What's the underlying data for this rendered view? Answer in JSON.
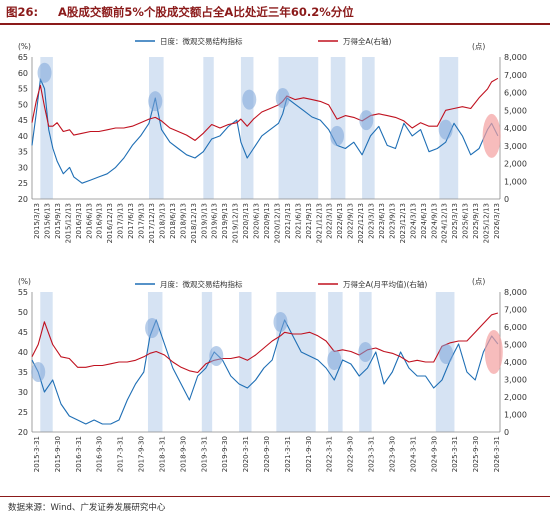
{
  "figure": {
    "number": "图26:",
    "title": "A股成交额前5%个股成交额占全A比处近三年60.2%分位",
    "source": "数据来源：Wind、广发证券发展研究中心"
  },
  "colors": {
    "left_series": "#1f6fb5",
    "right_series": "#c0111f",
    "shade": "#c8d9ef",
    "highlight_blue": "#7ea6d8",
    "highlight_red": "#f4a0a0"
  },
  "chart_data": [
    {
      "type": "line",
      "id": "daily",
      "left_unit": "(%)",
      "right_unit": "(点)",
      "ylim_left": [
        20,
        65
      ],
      "yticks_left": [
        20,
        25,
        30,
        35,
        40,
        45,
        50,
        55,
        60,
        65
      ],
      "ylim_right": [
        0,
        8000
      ],
      "yticks_right": [
        "0",
        "1,000",
        "2,000",
        "3,000",
        "4,000",
        "5,000",
        "6,000",
        "7,000",
        "8,000"
      ],
      "x_labels": [
        "2015/3/13",
        "2015/6/13",
        "2015/9/13",
        "2015/12/13",
        "2016/3/13",
        "2016/6/13",
        "2016/9/13",
        "2016/12/13",
        "2017/3/13",
        "2017/6/13",
        "2017/9/13",
        "2017/12/13",
        "2018/3/13",
        "2018/6/13",
        "2018/9/13",
        "2018/12/13",
        "2019/3/13",
        "2019/6/13",
        "2019/9/13",
        "2019/12/13",
        "2020/3/13",
        "2020/6/13",
        "2020/9/13",
        "2020/12/13",
        "2021/3/13",
        "2021/6/13",
        "2021/9/13",
        "2021/12/13",
        "2022/3/13",
        "2022/6/13",
        "2022/9/13",
        "2022/12/13",
        "2023/3/13",
        "2023/6/13",
        "2023/9/13",
        "2023/12/13",
        "2024/3/13",
        "2024/6/13",
        "2024/9/13",
        "2024/12/13",
        "2025/3/13",
        "2025/6/13",
        "2025/9/13",
        "2025/12/13",
        "2026/3/13"
      ],
      "x_range": [
        2015.0,
        2026.2
      ],
      "series": [
        {
          "name": "日度：微观交易结构指标",
          "axis": "left",
          "x": [
            2015.0,
            2015.1,
            2015.2,
            2015.3,
            2015.4,
            2015.5,
            2015.6,
            2015.75,
            2015.9,
            2016.0,
            2016.2,
            2016.4,
            2016.6,
            2016.8,
            2017.0,
            2017.2,
            2017.4,
            2017.6,
            2017.8,
            2017.95,
            2018.1,
            2018.3,
            2018.5,
            2018.7,
            2018.9,
            2019.1,
            2019.3,
            2019.5,
            2019.7,
            2019.9,
            2020.0,
            2020.15,
            2020.3,
            2020.5,
            2020.7,
            2020.9,
            2021.0,
            2021.1,
            2021.3,
            2021.5,
            2021.7,
            2021.9,
            2022.1,
            2022.3,
            2022.5,
            2022.7,
            2022.9,
            2023.1,
            2023.3,
            2023.5,
            2023.7,
            2023.9,
            2024.1,
            2024.3,
            2024.5,
            2024.7,
            2024.9,
            2025.1,
            2025.3,
            2025.5,
            2025.7,
            2025.9,
            2026.0,
            2026.15
          ],
          "y": [
            37,
            47,
            58,
            55,
            42,
            36,
            32,
            28,
            30,
            27,
            25,
            26,
            27,
            28,
            30,
            33,
            37,
            40,
            44,
            52,
            42,
            38,
            36,
            34,
            33,
            35,
            39,
            40,
            43,
            45,
            38,
            33,
            36,
            40,
            42,
            44,
            47,
            52,
            50,
            48,
            46,
            45,
            42,
            37,
            36,
            38,
            34,
            40,
            43,
            37,
            36,
            44,
            40,
            42,
            35,
            36,
            38,
            44,
            40,
            34,
            36,
            42,
            44,
            40
          ]
        },
        {
          "name": "万得全A(右轴)",
          "axis": "right",
          "x": [
            2015.0,
            2015.1,
            2015.2,
            2015.3,
            2015.4,
            2015.5,
            2015.6,
            2015.75,
            2015.9,
            2016.0,
            2016.2,
            2016.4,
            2016.6,
            2016.8,
            2017.0,
            2017.2,
            2017.4,
            2017.6,
            2017.8,
            2017.95,
            2018.1,
            2018.3,
            2018.5,
            2018.7,
            2018.9,
            2019.1,
            2019.3,
            2019.5,
            2019.7,
            2019.9,
            2020.0,
            2020.15,
            2020.3,
            2020.5,
            2020.7,
            2020.9,
            2021.0,
            2021.1,
            2021.3,
            2021.5,
            2021.7,
            2021.9,
            2022.1,
            2022.3,
            2022.5,
            2022.7,
            2022.9,
            2023.1,
            2023.3,
            2023.5,
            2023.7,
            2023.9,
            2024.1,
            2024.3,
            2024.5,
            2024.7,
            2024.9,
            2025.1,
            2025.3,
            2025.5,
            2025.7,
            2025.9,
            2026.0,
            2026.15
          ],
          "y": [
            4300,
            5500,
            6400,
            5200,
            4100,
            4100,
            4300,
            3800,
            3900,
            3600,
            3700,
            3800,
            3800,
            3900,
            4000,
            4000,
            4100,
            4300,
            4500,
            4600,
            4400,
            4000,
            3800,
            3600,
            3300,
            3700,
            4200,
            4000,
            4200,
            4300,
            4500,
            4100,
            4500,
            4900,
            5100,
            5300,
            5500,
            5800,
            5600,
            5700,
            5600,
            5500,
            5300,
            4500,
            4700,
            4600,
            4400,
            4700,
            4800,
            4700,
            4600,
            4400,
            4000,
            4300,
            4100,
            4100,
            5000,
            5100,
            5200,
            5100,
            5700,
            6200,
            6600,
            6800
          ]
        }
      ],
      "shaded_periods": [
        [
          2015.2,
          2015.5
        ],
        [
          2017.8,
          2018.15
        ],
        [
          2019.1,
          2019.35
        ],
        [
          2020.0,
          2020.3
        ],
        [
          2020.9,
          2021.85
        ],
        [
          2022.15,
          2022.5
        ],
        [
          2022.9,
          2023.2
        ],
        [
          2024.75,
          2025.2
        ]
      ],
      "highlights": [
        [
          2015.3,
          60
        ],
        [
          2017.95,
          51
        ],
        [
          2020.2,
          51.5
        ],
        [
          2021.0,
          52
        ],
        [
          2022.3,
          40
        ],
        [
          2023.0,
          45
        ],
        [
          2024.9,
          42
        ]
      ],
      "red_highlight": [
        2026.0,
        40
      ]
    },
    {
      "type": "line",
      "id": "monthly",
      "left_unit": "(%)",
      "right_unit": "(点)",
      "ylim_left": [
        20,
        55
      ],
      "yticks_left": [
        20,
        25,
        30,
        35,
        40,
        45,
        50,
        55
      ],
      "ylim_right": [
        0,
        8000
      ],
      "yticks_right": [
        "0",
        "1,000",
        "2,000",
        "3,000",
        "4,000",
        "5,000",
        "6,000",
        "7,000",
        "8,000"
      ],
      "x_labels": [
        "2015-3-31",
        "2015-9-30",
        "2016-3-31",
        "2016-9-30",
        "2017-3-31",
        "2017-9-30",
        "2018-3-31",
        "2018-9-30",
        "2019-3-31",
        "2019-9-30",
        "2020-3-31",
        "2020-9-30",
        "2021-3-31",
        "2021-9-30",
        "2022-3-31",
        "2022-9-30",
        "2023-3-31",
        "2023-9-30",
        "2024-3-31",
        "2024-9-30",
        "2025-3-31",
        "2025-9-30",
        "2026-3-31"
      ],
      "x_range": [
        2015.0,
        2026.3
      ],
      "series": [
        {
          "name": "月度：微观交易结构指标",
          "axis": "left",
          "x": [
            2015.0,
            2015.15,
            2015.3,
            2015.5,
            2015.7,
            2015.9,
            2016.1,
            2016.3,
            2016.5,
            2016.7,
            2016.9,
            2017.1,
            2017.3,
            2017.5,
            2017.7,
            2017.85,
            2018.0,
            2018.2,
            2018.4,
            2018.6,
            2018.8,
            2019.0,
            2019.2,
            2019.4,
            2019.6,
            2019.8,
            2020.0,
            2020.2,
            2020.4,
            2020.6,
            2020.8,
            2021.0,
            2021.1,
            2021.3,
            2021.5,
            2021.7,
            2021.9,
            2022.1,
            2022.3,
            2022.5,
            2022.7,
            2022.9,
            2023.1,
            2023.3,
            2023.5,
            2023.7,
            2023.9,
            2024.1,
            2024.3,
            2024.5,
            2024.7,
            2024.9,
            2025.1,
            2025.3,
            2025.5,
            2025.7,
            2025.9,
            2026.1,
            2026.25
          ],
          "y": [
            38,
            35,
            30,
            33,
            27,
            24,
            23,
            22,
            23,
            22,
            22,
            23,
            28,
            32,
            35,
            44,
            48,
            42,
            36,
            32,
            28,
            34,
            36,
            40,
            38,
            34,
            32,
            31,
            33,
            36,
            38,
            45,
            48,
            44,
            40,
            39,
            38,
            36,
            33,
            38,
            37,
            34,
            36,
            40,
            32,
            35,
            40,
            36,
            34,
            34,
            31,
            33,
            38,
            42,
            35,
            33,
            40,
            44,
            42
          ]
        },
        {
          "name": "万得全A(月平均值)(右轴)",
          "axis": "right",
          "x": [
            2015.0,
            2015.15,
            2015.3,
            2015.5,
            2015.7,
            2015.9,
            2016.1,
            2016.3,
            2016.5,
            2016.7,
            2016.9,
            2017.1,
            2017.3,
            2017.5,
            2017.7,
            2017.85,
            2018.0,
            2018.2,
            2018.4,
            2018.6,
            2018.8,
            2019.0,
            2019.2,
            2019.4,
            2019.6,
            2019.8,
            2020.0,
            2020.2,
            2020.4,
            2020.6,
            2020.8,
            2021.0,
            2021.1,
            2021.3,
            2021.5,
            2021.7,
            2021.9,
            2022.1,
            2022.3,
            2022.5,
            2022.7,
            2022.9,
            2023.1,
            2023.3,
            2023.5,
            2023.7,
            2023.9,
            2024.1,
            2024.3,
            2024.5,
            2024.7,
            2024.9,
            2025.1,
            2025.3,
            2025.5,
            2025.7,
            2025.9,
            2026.1,
            2026.25
          ],
          "y": [
            4300,
            5000,
            6300,
            5000,
            4300,
            4200,
            3700,
            3700,
            3800,
            3800,
            3900,
            4000,
            4000,
            4100,
            4300,
            4500,
            4600,
            4400,
            4000,
            3700,
            3500,
            3400,
            3900,
            4100,
            4200,
            4200,
            4300,
            4100,
            4400,
            4800,
            5200,
            5500,
            5700,
            5600,
            5600,
            5700,
            5500,
            5200,
            4600,
            4700,
            4600,
            4400,
            4700,
            4800,
            4600,
            4500,
            4300,
            4000,
            4100,
            4000,
            4000,
            4900,
            5100,
            5200,
            5200,
            5700,
            6200,
            6700,
            6800
          ]
        }
      ],
      "shaded_periods": [
        [
          2015.2,
          2015.5
        ],
        [
          2017.8,
          2018.15
        ],
        [
          2019.1,
          2019.35
        ],
        [
          2020.0,
          2020.3
        ],
        [
          2020.9,
          2021.85
        ],
        [
          2022.15,
          2022.5
        ],
        [
          2022.9,
          2023.2
        ],
        [
          2024.75,
          2025.2
        ]
      ],
      "highlights": [
        [
          2015.15,
          35
        ],
        [
          2017.9,
          46
        ],
        [
          2019.45,
          39
        ],
        [
          2021.0,
          47.5
        ],
        [
          2022.3,
          38
        ],
        [
          2023.05,
          40
        ],
        [
          2025.0,
          39.5
        ]
      ],
      "red_highlight": [
        2026.15,
        40
      ]
    }
  ]
}
